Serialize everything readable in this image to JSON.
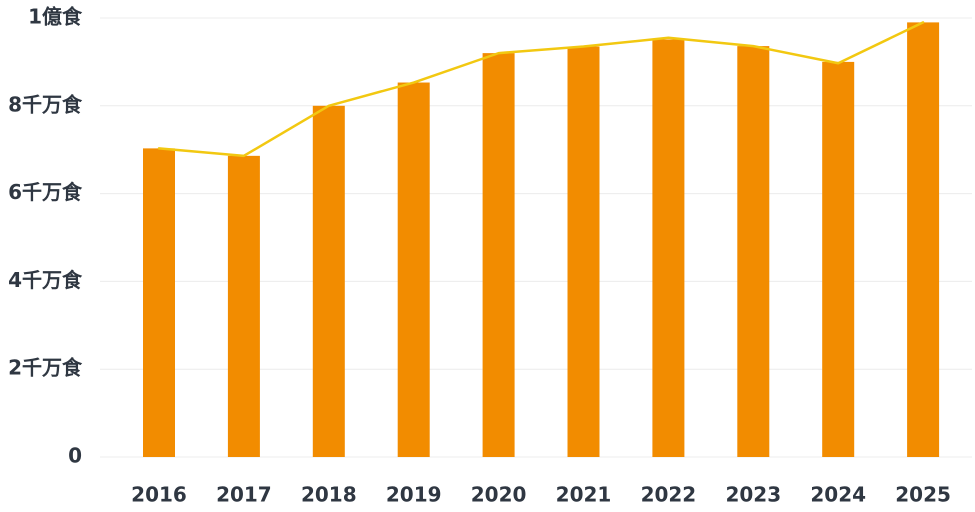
{
  "chart_data": {
    "type": "bar",
    "categories": [
      "2016",
      "2017",
      "2018",
      "2019",
      "2020",
      "2021",
      "2022",
      "2023",
      "2024",
      "2025"
    ],
    "series": [
      {
        "type": "bar",
        "values": [
          70300000,
          68600000,
          80000000,
          85300000,
          92000000,
          93500000,
          95100000,
          93600000,
          90000000,
          99000000
        ]
      },
      {
        "type": "line",
        "values": [
          70300000,
          68600000,
          80000000,
          85300000,
          92000000,
          93500000,
          95500000,
          93600000,
          89700000,
          99000000
        ]
      }
    ],
    "ylim": [
      0,
      100000000
    ],
    "y_ticks": [
      {
        "value": 0,
        "label": "0"
      },
      {
        "value": 20000000,
        "label": "2千万食"
      },
      {
        "value": 40000000,
        "label": "4千万食"
      },
      {
        "value": 60000000,
        "label": "6千万食"
      },
      {
        "value": 80000000,
        "label": "8千万食"
      },
      {
        "value": 100000000,
        "label": "1億食"
      }
    ],
    "grid": true,
    "legend": "none",
    "colors": {
      "bar": "#f28c00",
      "line": "#f2c811",
      "grid": "#ececec",
      "text": "#2f3742"
    }
  }
}
